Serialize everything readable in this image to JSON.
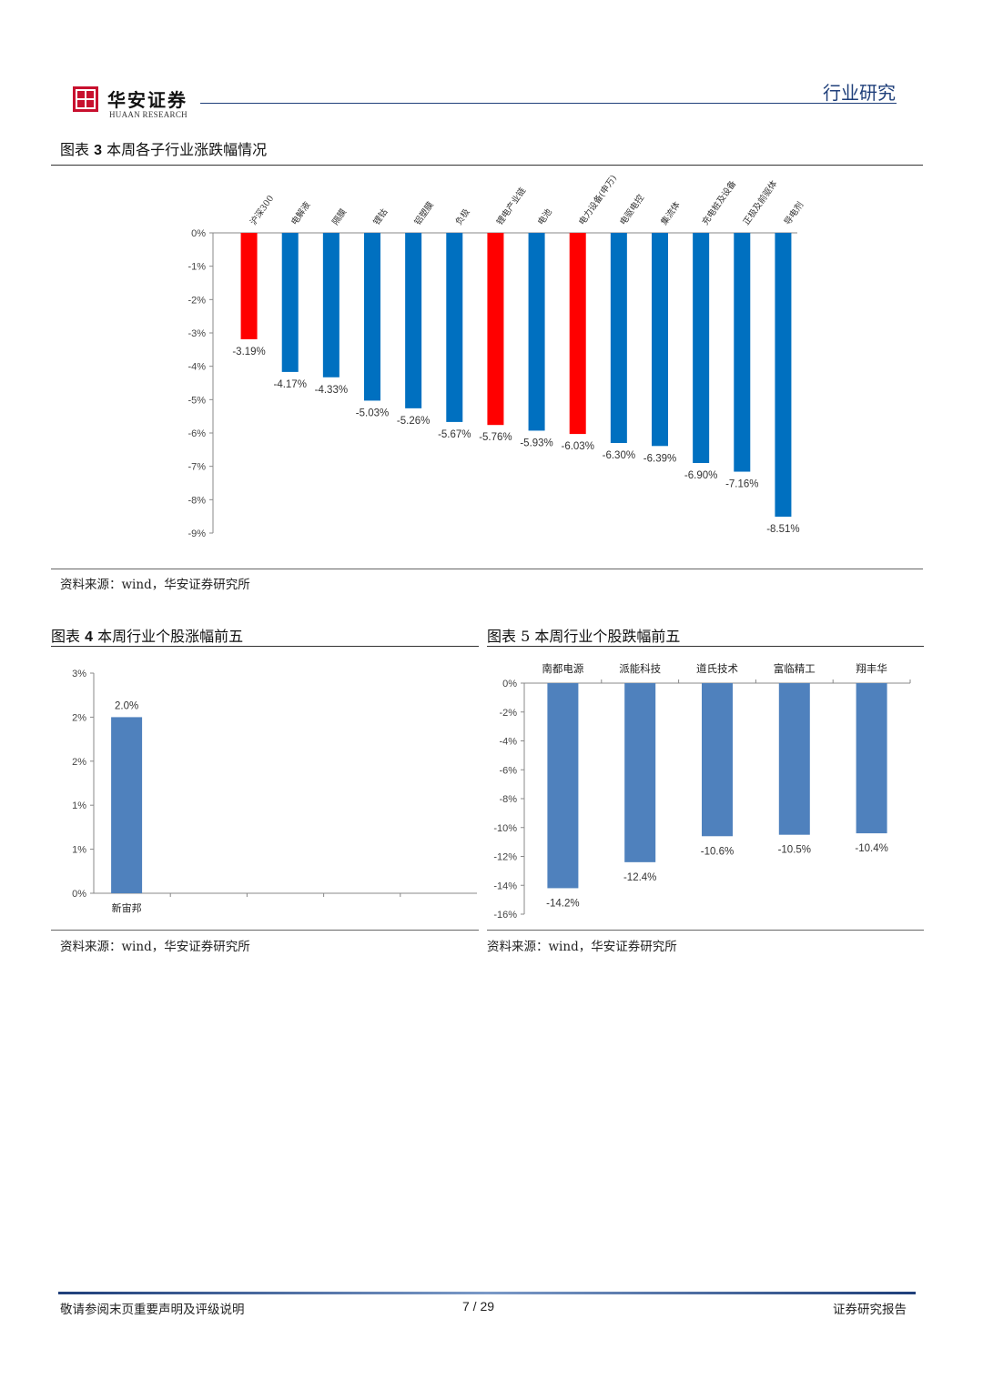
{
  "header": {
    "logo_cn": "华安证券",
    "logo_en": "HUAAN RESEARCH",
    "section": "行业研究"
  },
  "colors": {
    "red": "#ff0000",
    "blue": "#0070c0",
    "steel_blue": "#4f81bd",
    "navy": "#1f3f7a"
  },
  "chart_data": [
    {
      "id": "fig3",
      "type": "bar",
      "figure_label": "图表",
      "figure_number": "3",
      "title": "本周各子行业涨跌幅情况",
      "categories": [
        "沪深300",
        "电解液",
        "隔膜",
        "锂钴",
        "铝塑膜",
        "负极",
        "锂电产业链",
        "电池",
        "电力设备(申万)",
        "电驱电控",
        "集流体",
        "充电桩及设备",
        "正极及前驱体",
        "导电剂"
      ],
      "values": [
        -3.19,
        -4.17,
        -4.33,
        -5.03,
        -5.26,
        -5.67,
        -5.76,
        -5.93,
        -6.03,
        -6.3,
        -6.39,
        -6.9,
        -7.16,
        -8.51
      ],
      "value_labels": [
        "-3.19%",
        "-4.17%",
        "-4.33%",
        "-5.03%",
        "-5.26%",
        "-5.67%",
        "-5.76%",
        "-5.93%",
        "-6.03%",
        "-6.30%",
        "-6.39%",
        "-6.90%",
        "-7.16%",
        "-8.51%"
      ],
      "highlight": [
        true,
        false,
        false,
        false,
        false,
        false,
        true,
        false,
        true,
        false,
        false,
        false,
        false,
        false
      ],
      "ylim": [
        -9,
        0
      ],
      "ticks": [
        "0%",
        "-1%",
        "-2%",
        "-3%",
        "-4%",
        "-5%",
        "-6%",
        "-7%",
        "-8%",
        "-9%"
      ],
      "source": "资料来源：wind，华安证券研究所"
    },
    {
      "id": "fig4",
      "type": "bar",
      "figure_label": "图表",
      "figure_number": "4",
      "title": "本周行业个股涨幅前五",
      "categories": [
        "新宙邦"
      ],
      "values": [
        2.0
      ],
      "value_labels": [
        "2.0%"
      ],
      "ylim": [
        0,
        2.5
      ],
      "ticks": [
        "0%",
        "1%",
        "1%",
        "2%",
        "2%",
        "3%"
      ],
      "source": "资料来源：wind，华安证券研究所"
    },
    {
      "id": "fig5",
      "type": "bar",
      "figure_label": "图表",
      "figure_number": "5",
      "title": "本周行业个股跌幅前五",
      "categories": [
        "南都电源",
        "派能科技",
        "道氏技术",
        "富临精工",
        "翔丰华"
      ],
      "values": [
        -14.2,
        -12.4,
        -10.6,
        -10.5,
        -10.4
      ],
      "value_labels": [
        "-14.2%",
        "-12.4%",
        "-10.6%",
        "-10.5%",
        "-10.4%"
      ],
      "ylim": [
        -16,
        0
      ],
      "ticks": [
        "0%",
        "-2%",
        "-4%",
        "-6%",
        "-8%",
        "-10%",
        "-12%",
        "-14%",
        "-16%"
      ],
      "source": "资料来源：wind，华安证券研究所"
    }
  ],
  "footer": {
    "disclaimer": "敬请参阅末页重要声明及评级说明",
    "page": "7 / 29",
    "report_type": "证券研究报告"
  }
}
